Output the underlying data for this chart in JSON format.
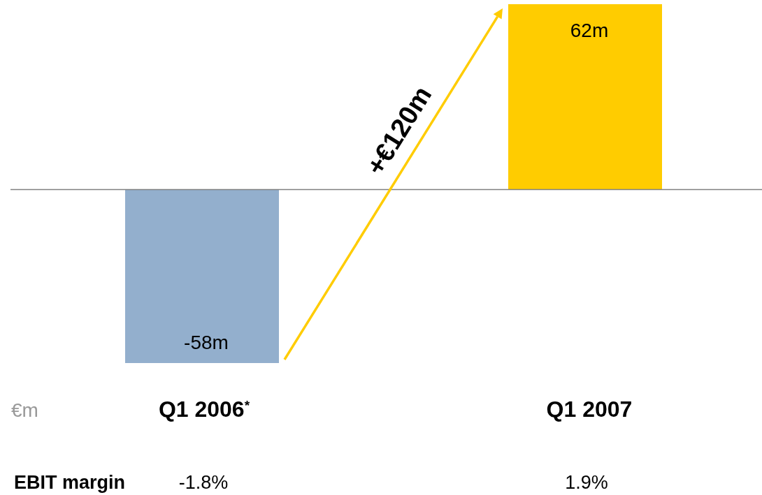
{
  "chart_data": {
    "type": "bar",
    "categories": [
      "Q1 2006$^{*}$",
      "Q1 2007"
    ],
    "values": [
      -58,
      62
    ],
    "colors": [
      "#93afcd",
      "#ffcc00"
    ],
    "value_labels": [
      "-58m",
      "62m"
    ],
    "annotations": [
      "+€120m",
      "€m",
      "EBIT margin",
      "-1.8%",
      "1.9%"
    ]
  }
}
